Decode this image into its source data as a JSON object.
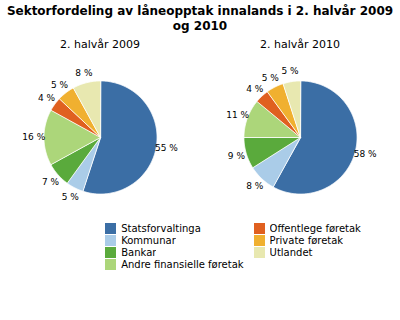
{
  "title": "Sektorfordeling av låneopptak innalands i 2. halvår 2009 og 2010",
  "chart_data": [
    {
      "type": "pie",
      "title": "2. halvår 2009",
      "categories": [
        "Statsforvaltinga",
        "Kommunar",
        "Bankar",
        "Andre finansielle føretak",
        "Offentlege føretak",
        "Private føretak",
        "Utlandet"
      ],
      "values": [
        55,
        5,
        7,
        16,
        4,
        5,
        8
      ],
      "value_labels": [
        "55 %",
        "5 %",
        "7 %",
        "16 %",
        "4 %",
        "5 %",
        "8 %"
      ],
      "colors": [
        "#3b6ea5",
        "#aacce8",
        "#5aaa3c",
        "#acd67a",
        "#e06020",
        "#f0b030",
        "#e8e8b0"
      ],
      "data_labels": true,
      "legend": "lower right"
    },
    {
      "type": "pie",
      "title": "2. halvår 2010",
      "categories": [
        "Statsforvaltinga",
        "Kommunar",
        "Bankar",
        "Andre finansielle føretak",
        "Offentlege føretak",
        "Private føretak",
        "Utlandet"
      ],
      "values": [
        58,
        8,
        9,
        11,
        4,
        5,
        5
      ],
      "value_labels": [
        "58 %",
        "8 %",
        "9 %",
        "11 %",
        "4 %",
        "5 %",
        "5 %"
      ],
      "colors": [
        "#3b6ea5",
        "#aacce8",
        "#5aaa3c",
        "#acd67a",
        "#e06020",
        "#f0b030",
        "#e8e8b0"
      ],
      "data_labels": true,
      "legend": "lower right"
    }
  ]
}
